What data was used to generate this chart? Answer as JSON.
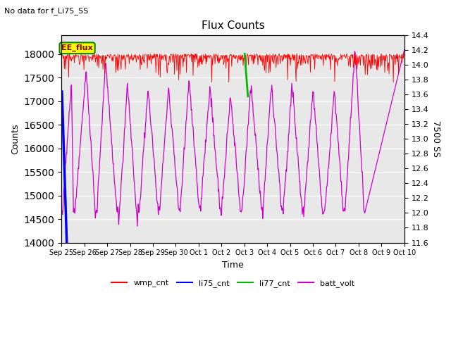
{
  "title": "Flux Counts",
  "subtitle": "No data for f_Li75_SS",
  "xlabel": "Time",
  "ylabel_left": "Counts",
  "ylabel_right": "7500 SS",
  "ylim_left": [
    14000,
    18400
  ],
  "ylim_right": [
    11.6,
    14.4
  ],
  "yticks_left": [
    14000,
    14500,
    15000,
    15500,
    16000,
    16500,
    17000,
    17500,
    18000
  ],
  "yticks_right": [
    11.6,
    11.8,
    12.0,
    12.2,
    12.4,
    12.6,
    12.8,
    13.0,
    13.2,
    13.4,
    13.6,
    13.8,
    14.0,
    14.2,
    14.4
  ],
  "xtick_labels": [
    "Sep 25",
    "Sep 26",
    "Sep 27",
    "Sep 28",
    "Sep 29",
    "Sep 30",
    "Oct 1",
    "Oct 2",
    "Oct 3",
    "Oct 4",
    "Oct 5",
    "Oct 6",
    "Oct 7",
    "Oct 8",
    "Oct 9",
    "Oct 10"
  ],
  "legend_entries": [
    "wmp_cnt",
    "li75_cnt",
    "li77_cnt",
    "batt_volt"
  ],
  "legend_colors": [
    "#ff0000",
    "#0000ff",
    "#00bb00",
    "#cc00cc"
  ],
  "annotation_box": "EE_flux",
  "annotation_box_color": "#ffff00",
  "annotation_box_border": "#008800",
  "wmp_cnt_color": "#ff0000",
  "li75_cnt_color": "#0000ff",
  "li77_cnt_color": "#00bb00",
  "batt_volt_color": "#cc00cc",
  "background_color": "#e8e8e8",
  "grid_color": "#ffffff",
  "figsize": [
    6.4,
    4.8
  ],
  "dpi": 100
}
